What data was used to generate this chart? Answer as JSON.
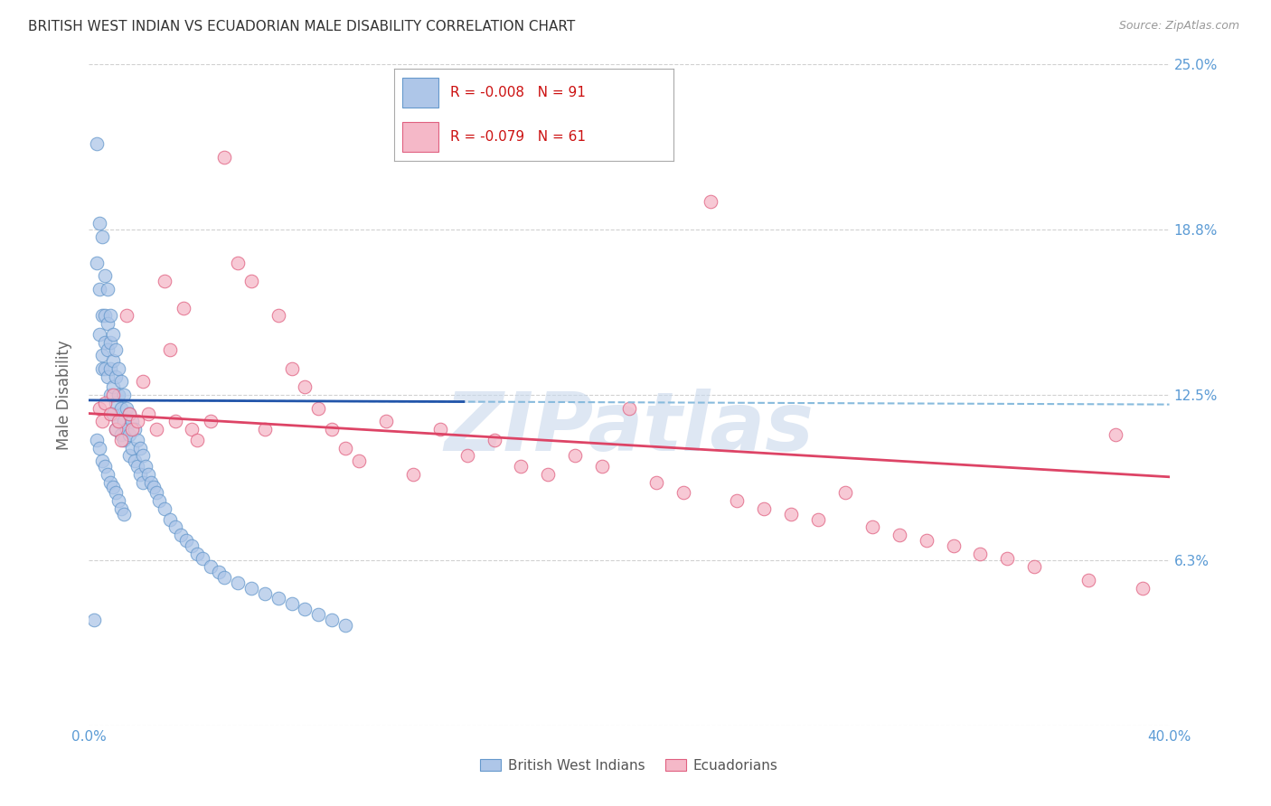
{
  "title": "BRITISH WEST INDIAN VS ECUADORIAN MALE DISABILITY CORRELATION CHART",
  "source": "Source: ZipAtlas.com",
  "ylabel": "Male Disability",
  "x_min": 0.0,
  "x_max": 0.4,
  "y_min": 0.0,
  "y_max": 0.25,
  "y_ticks": [
    0.0,
    0.0625,
    0.125,
    0.1875,
    0.25
  ],
  "y_tick_labels": [
    "",
    "6.3%",
    "12.5%",
    "18.8%",
    "25.0%"
  ],
  "x_ticks": [
    0.0,
    0.1,
    0.2,
    0.3,
    0.4
  ],
  "x_tick_labels": [
    "0.0%",
    "",
    "",
    "",
    "40.0%"
  ],
  "blue_R": -0.008,
  "blue_N": 91,
  "pink_R": -0.079,
  "pink_N": 61,
  "blue_color": "#aec6e8",
  "blue_edge_color": "#6699cc",
  "pink_color": "#f5b8c8",
  "pink_edge_color": "#e06080",
  "blue_line_color": "#2255aa",
  "blue_dash_color": "#88bbdd",
  "pink_line_color": "#dd4466",
  "watermark": "ZIPatlas",
  "watermark_color": "#c8d8ec",
  "title_fontsize": 11,
  "axis_label_color": "#5b9bd5",
  "blue_x": [
    0.002,
    0.003,
    0.003,
    0.004,
    0.004,
    0.004,
    0.005,
    0.005,
    0.005,
    0.005,
    0.006,
    0.006,
    0.006,
    0.006,
    0.007,
    0.007,
    0.007,
    0.007,
    0.008,
    0.008,
    0.008,
    0.008,
    0.009,
    0.009,
    0.009,
    0.009,
    0.01,
    0.01,
    0.01,
    0.01,
    0.011,
    0.011,
    0.011,
    0.012,
    0.012,
    0.012,
    0.013,
    0.013,
    0.013,
    0.014,
    0.014,
    0.015,
    0.015,
    0.015,
    0.016,
    0.016,
    0.017,
    0.017,
    0.018,
    0.018,
    0.019,
    0.019,
    0.02,
    0.02,
    0.021,
    0.022,
    0.023,
    0.024,
    0.025,
    0.026,
    0.028,
    0.03,
    0.032,
    0.034,
    0.036,
    0.038,
    0.04,
    0.042,
    0.045,
    0.048,
    0.05,
    0.055,
    0.06,
    0.065,
    0.07,
    0.075,
    0.08,
    0.085,
    0.09,
    0.095,
    0.003,
    0.004,
    0.005,
    0.006,
    0.007,
    0.008,
    0.009,
    0.01,
    0.011,
    0.012,
    0.013
  ],
  "blue_y": [
    0.04,
    0.22,
    0.175,
    0.19,
    0.165,
    0.148,
    0.185,
    0.155,
    0.14,
    0.135,
    0.17,
    0.155,
    0.145,
    0.135,
    0.165,
    0.152,
    0.142,
    0.132,
    0.155,
    0.145,
    0.135,
    0.125,
    0.148,
    0.138,
    0.128,
    0.118,
    0.142,
    0.132,
    0.122,
    0.112,
    0.135,
    0.125,
    0.115,
    0.13,
    0.12,
    0.11,
    0.125,
    0.115,
    0.108,
    0.12,
    0.112,
    0.118,
    0.11,
    0.102,
    0.115,
    0.105,
    0.112,
    0.1,
    0.108,
    0.098,
    0.105,
    0.095,
    0.102,
    0.092,
    0.098,
    0.095,
    0.092,
    0.09,
    0.088,
    0.085,
    0.082,
    0.078,
    0.075,
    0.072,
    0.07,
    0.068,
    0.065,
    0.063,
    0.06,
    0.058,
    0.056,
    0.054,
    0.052,
    0.05,
    0.048,
    0.046,
    0.044,
    0.042,
    0.04,
    0.038,
    0.108,
    0.105,
    0.1,
    0.098,
    0.095,
    0.092,
    0.09,
    0.088,
    0.085,
    0.082,
    0.08
  ],
  "pink_x": [
    0.004,
    0.005,
    0.006,
    0.008,
    0.009,
    0.01,
    0.011,
    0.012,
    0.014,
    0.015,
    0.016,
    0.018,
    0.02,
    0.022,
    0.025,
    0.028,
    0.03,
    0.032,
    0.035,
    0.038,
    0.04,
    0.045,
    0.05,
    0.055,
    0.06,
    0.065,
    0.07,
    0.075,
    0.08,
    0.085,
    0.09,
    0.095,
    0.1,
    0.11,
    0.12,
    0.13,
    0.14,
    0.15,
    0.16,
    0.17,
    0.18,
    0.19,
    0.2,
    0.21,
    0.22,
    0.23,
    0.24,
    0.25,
    0.26,
    0.27,
    0.28,
    0.29,
    0.3,
    0.31,
    0.32,
    0.33,
    0.34,
    0.35,
    0.37,
    0.38,
    0.39
  ],
  "pink_y": [
    0.12,
    0.115,
    0.122,
    0.118,
    0.125,
    0.112,
    0.115,
    0.108,
    0.155,
    0.118,
    0.112,
    0.115,
    0.13,
    0.118,
    0.112,
    0.168,
    0.142,
    0.115,
    0.158,
    0.112,
    0.108,
    0.115,
    0.215,
    0.175,
    0.168,
    0.112,
    0.155,
    0.135,
    0.128,
    0.12,
    0.112,
    0.105,
    0.1,
    0.115,
    0.095,
    0.112,
    0.102,
    0.108,
    0.098,
    0.095,
    0.102,
    0.098,
    0.12,
    0.092,
    0.088,
    0.198,
    0.085,
    0.082,
    0.08,
    0.078,
    0.088,
    0.075,
    0.072,
    0.07,
    0.068,
    0.065,
    0.063,
    0.06,
    0.055,
    0.11,
    0.052
  ]
}
